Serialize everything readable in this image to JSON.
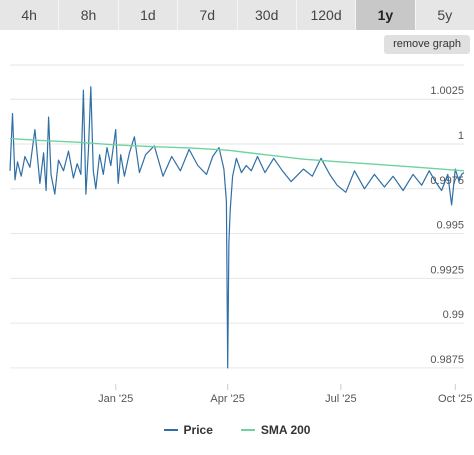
{
  "tabs": [
    {
      "label": "4h",
      "active": false
    },
    {
      "label": "8h",
      "active": false
    },
    {
      "label": "1d",
      "active": false
    },
    {
      "label": "7d",
      "active": false
    },
    {
      "label": "30d",
      "active": false
    },
    {
      "label": "120d",
      "active": false
    },
    {
      "label": "1y",
      "active": true
    },
    {
      "label": "5y",
      "active": false
    }
  ],
  "remove_graph_label": "remove graph",
  "colors": {
    "price": "#2f6fa5",
    "sma": "#6fd3a0",
    "grid": "#e6e6e6"
  },
  "chart_data": {
    "type": "line",
    "title": "",
    "xlabel": "",
    "ylabel": "",
    "x_range": [
      "2024-10-08",
      "2025-10-08"
    ],
    "ylim": [
      0.9866,
      1.0048
    ],
    "y_ticks": [
      {
        "value": 1.0025,
        "label": "1.0025"
      },
      {
        "value": 1.0,
        "label": "1"
      },
      {
        "value": 0.9975,
        "label": "0.9975"
      },
      {
        "value": 0.995,
        "label": "0.995"
      },
      {
        "value": 0.9925,
        "label": "0.9925"
      },
      {
        "value": 0.99,
        "label": "0.99"
      },
      {
        "value": 0.9875,
        "label": "0.9875"
      }
    ],
    "x_ticks": [
      {
        "value": "2025-01-01",
        "label": "Jan '25"
      },
      {
        "value": "2025-04-01",
        "label": "Apr '25"
      },
      {
        "value": "2025-07-01",
        "label": "Jul '25"
      },
      {
        "value": "2025-10-01",
        "label": "Oct '25"
      }
    ],
    "grid": true,
    "legend_position": "bottom-center",
    "series": [
      {
        "name": "Price",
        "x": [
          "2024-10-08",
          "2024-10-10",
          "2024-10-12",
          "2024-10-14",
          "2024-10-17",
          "2024-10-20",
          "2024-10-24",
          "2024-10-28",
          "2024-11-01",
          "2024-11-04",
          "2024-11-06",
          "2024-11-08",
          "2024-11-10",
          "2024-11-13",
          "2024-11-16",
          "2024-11-20",
          "2024-11-24",
          "2024-11-28",
          "2024-12-01",
          "2024-12-04",
          "2024-12-06",
          "2024-12-08",
          "2024-12-10",
          "2024-12-12",
          "2024-12-14",
          "2024-12-16",
          "2024-12-19",
          "2024-12-22",
          "2024-12-25",
          "2024-12-28",
          "2025-01-01",
          "2025-01-03",
          "2025-01-05",
          "2025-01-08",
          "2025-01-12",
          "2025-01-16",
          "2025-01-20",
          "2025-01-25",
          "2025-02-01",
          "2025-02-08",
          "2025-02-15",
          "2025-02-22",
          "2025-03-01",
          "2025-03-08",
          "2025-03-15",
          "2025-03-20",
          "2025-03-25",
          "2025-03-29",
          "2025-03-31",
          "2025-04-01",
          "2025-04-02",
          "2025-04-03",
          "2025-04-05",
          "2025-04-08",
          "2025-04-12",
          "2025-04-16",
          "2025-04-20",
          "2025-04-25",
          "2025-05-01",
          "2025-05-08",
          "2025-05-15",
          "2025-05-22",
          "2025-06-01",
          "2025-06-08",
          "2025-06-15",
          "2025-06-22",
          "2025-06-28",
          "2025-07-05",
          "2025-07-12",
          "2025-07-20",
          "2025-07-28",
          "2025-08-05",
          "2025-08-12",
          "2025-08-20",
          "2025-08-28",
          "2025-09-04",
          "2025-09-10",
          "2025-09-15",
          "2025-09-20",
          "2025-09-25",
          "2025-09-28",
          "2025-10-01",
          "2025-10-04",
          "2025-10-06",
          "2025-10-08"
        ],
        "y": [
          0.9985,
          1.0017,
          0.998,
          0.999,
          0.9982,
          0.9993,
          0.9987,
          1.0008,
          0.9978,
          0.9995,
          0.9974,
          1.0015,
          0.9983,
          0.9972,
          0.9991,
          0.9985,
          0.9996,
          0.9981,
          0.9989,
          0.9983,
          1.003,
          0.9972,
          0.9996,
          1.0032,
          0.9985,
          0.9975,
          0.9994,
          0.9983,
          0.9998,
          0.9988,
          1.0008,
          0.9978,
          0.9994,
          0.9982,
          0.9995,
          1.0004,
          0.9984,
          0.9994,
          0.9999,
          0.9982,
          0.9993,
          0.9985,
          0.9997,
          0.9988,
          0.9983,
          0.9993,
          0.9998,
          0.9986,
          0.9968,
          0.9875,
          0.9945,
          0.9963,
          0.9982,
          0.9992,
          0.9984,
          0.9988,
          0.9985,
          0.9993,
          0.9984,
          0.9992,
          0.9985,
          0.9979,
          0.9986,
          0.9982,
          0.9992,
          0.9983,
          0.9977,
          0.9973,
          0.9985,
          0.9975,
          0.9983,
          0.9976,
          0.9982,
          0.9974,
          0.9983,
          0.9977,
          0.9985,
          0.9979,
          0.9974,
          0.9983,
          0.9966,
          0.9986,
          0.9979,
          0.9983,
          0.9984
        ]
      },
      {
        "name": "SMA 200",
        "x": [
          "2024-10-08",
          "2024-11-01",
          "2024-12-01",
          "2025-01-01",
          "2025-02-01",
          "2025-03-01",
          "2025-04-01",
          "2025-05-01",
          "2025-06-01",
          "2025-07-01",
          "2025-08-01",
          "2025-09-01",
          "2025-10-08"
        ],
        "y": [
          1.0003,
          1.0002,
          1.0001,
          0.99995,
          0.99985,
          0.99978,
          0.99965,
          0.9994,
          0.99915,
          0.999,
          0.99885,
          0.9987,
          0.9985
        ]
      }
    ]
  }
}
